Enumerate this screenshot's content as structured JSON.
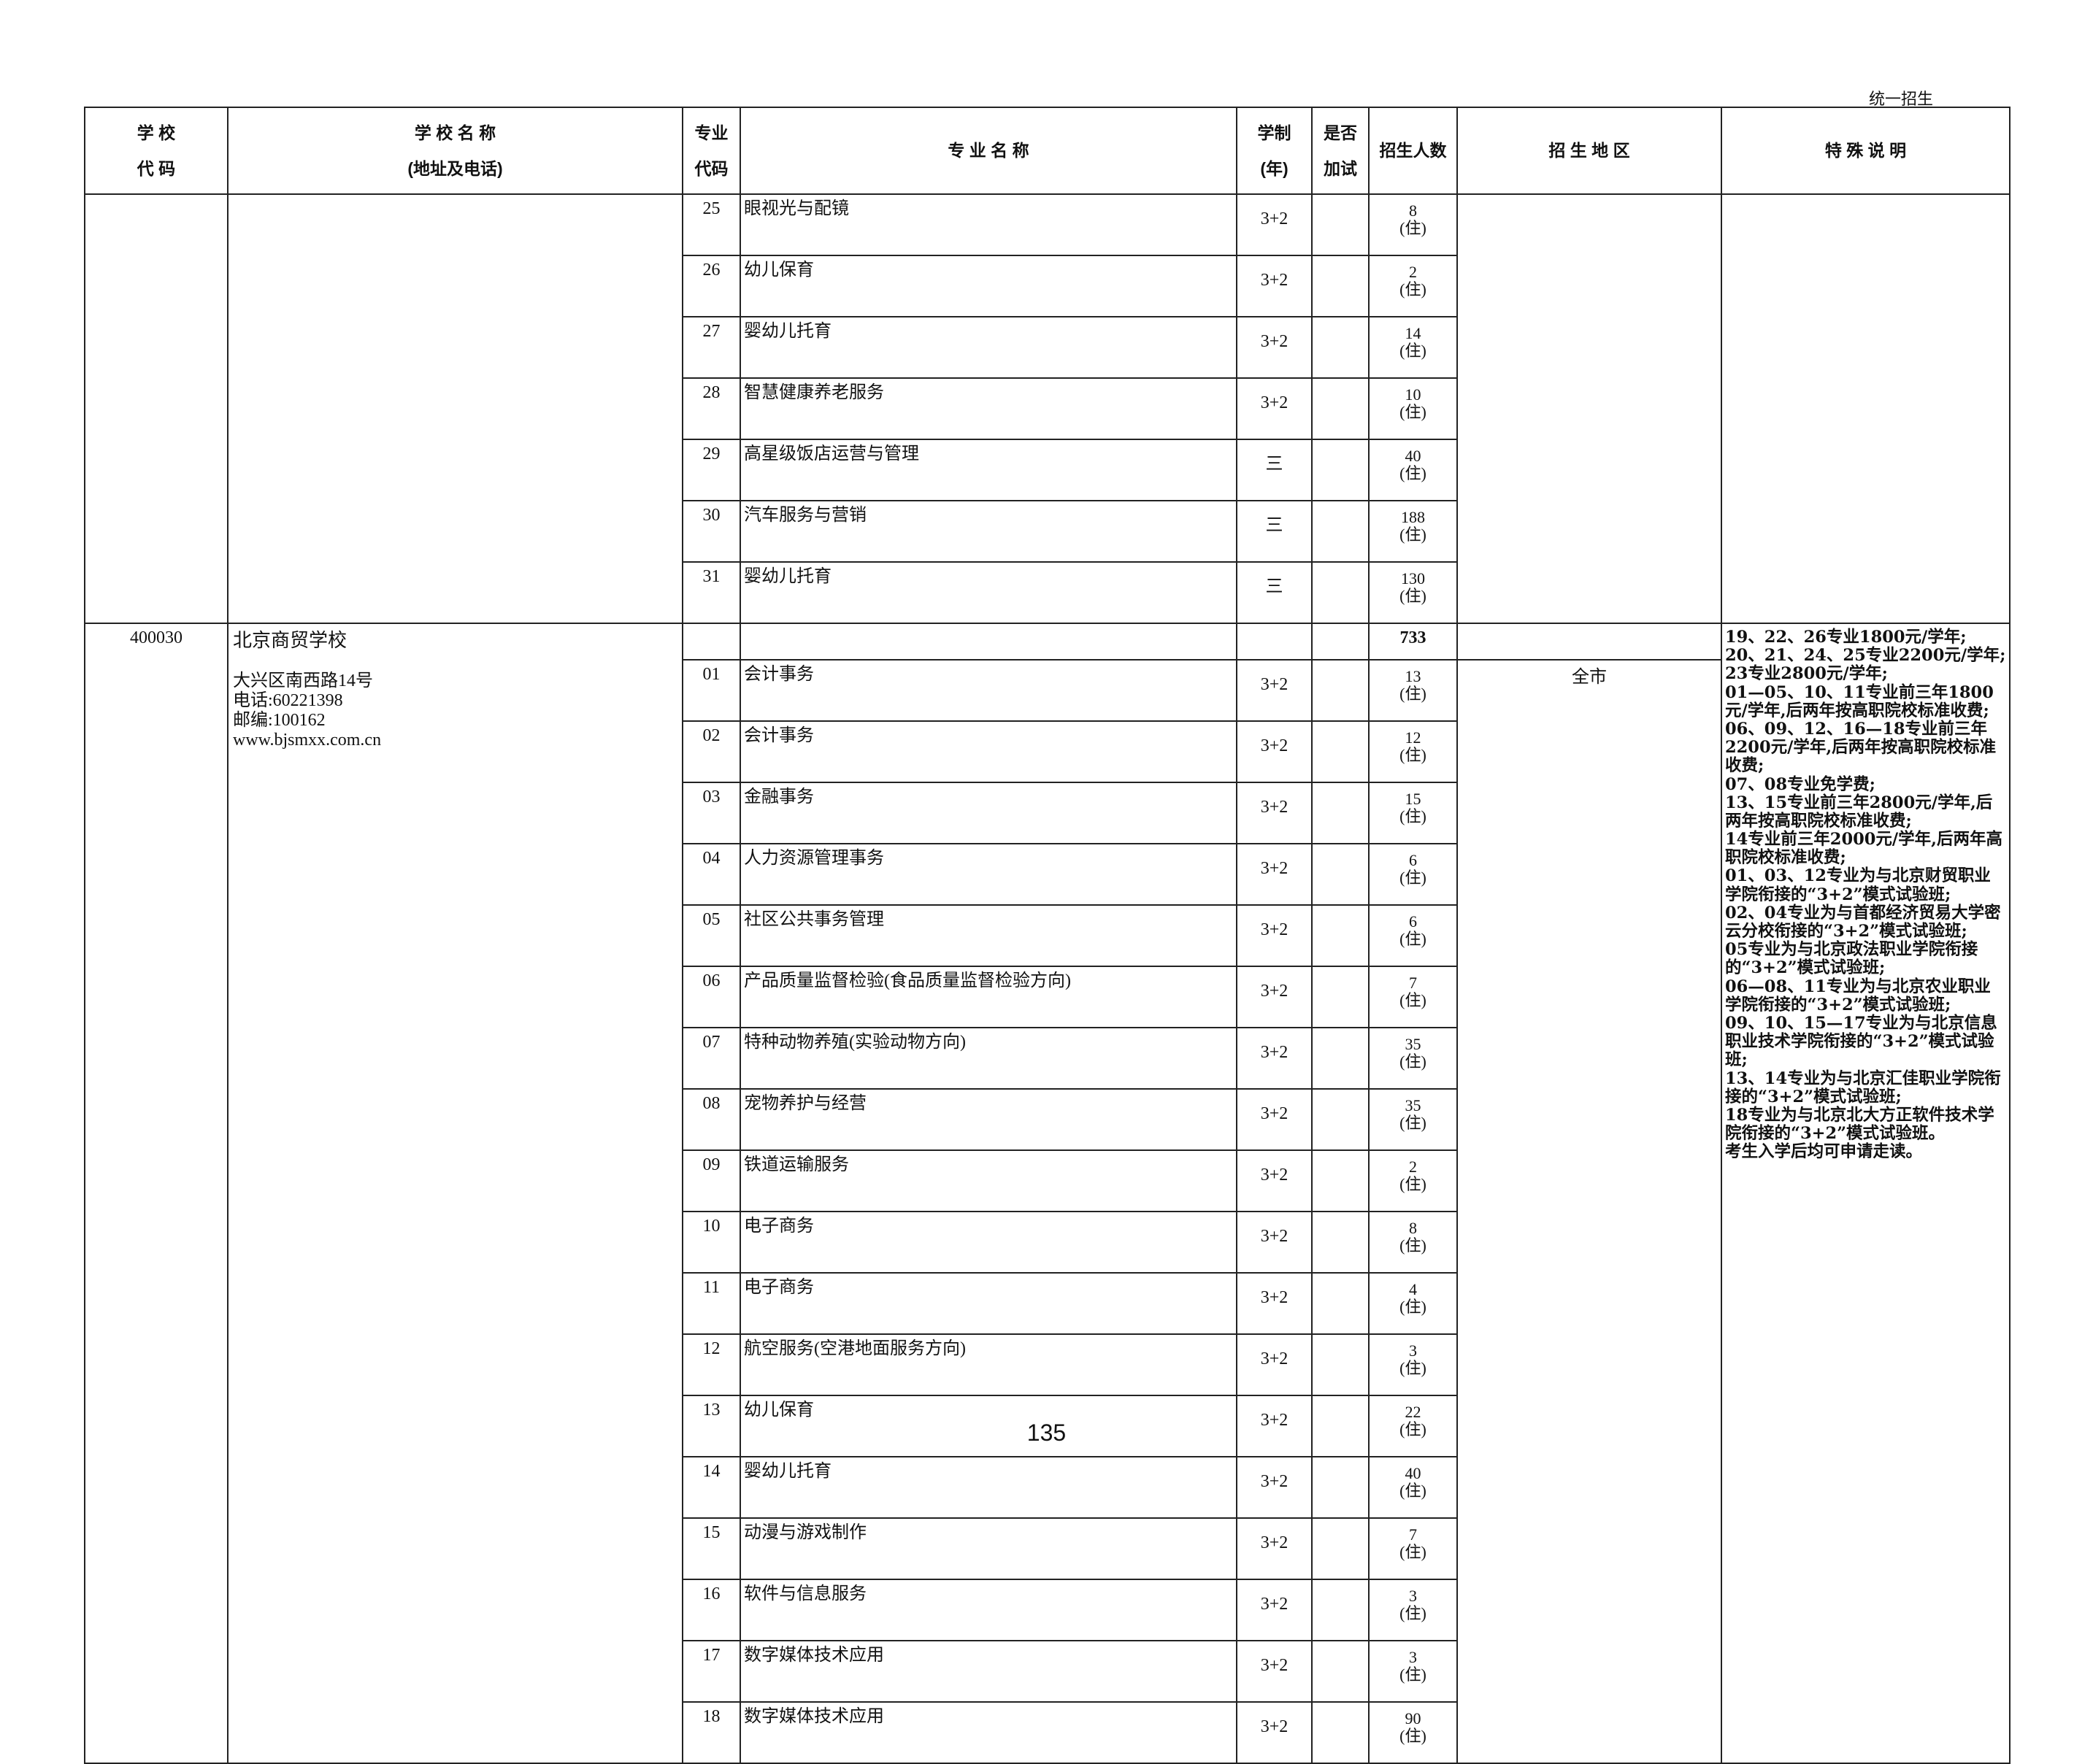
{
  "page_tag": "统一招生",
  "page_number": "135",
  "header": {
    "school_code": [
      "学 校",
      "代 码"
    ],
    "school_name": [
      "学 校 名 称",
      "(地址及电话)"
    ],
    "major_code": [
      "专业",
      "代码"
    ],
    "major_name": "专 业 名 称",
    "duration": [
      "学制",
      "(年)"
    ],
    "extra_test": [
      "是否",
      "加试"
    ],
    "quota": "招生人数",
    "region": "招 生 地 区",
    "notes": "特 殊 说 明"
  },
  "groups": [
    {
      "school": null,
      "rows": [
        {
          "code": "25",
          "name": "眼视光与配镜",
          "years": "3+2",
          "count": "8",
          "board": "(住)"
        },
        {
          "code": "26",
          "name": "幼儿保育",
          "years": "3+2",
          "count": "2",
          "board": "(住)"
        },
        {
          "code": "27",
          "name": "婴幼儿托育",
          "years": "3+2",
          "count": "14",
          "board": "(住)"
        },
        {
          "code": "28",
          "name": "智慧健康养老服务",
          "years": "3+2",
          "count": "10",
          "board": "(住)"
        },
        {
          "code": "29",
          "name": "高星级饭店运营与管理",
          "years": "三",
          "count": "40",
          "board": "(住)"
        },
        {
          "code": "30",
          "name": "汽车服务与营销",
          "years": "三",
          "count": "188",
          "board": "(住)"
        },
        {
          "code": "31",
          "name": "婴幼儿托育",
          "years": "三",
          "count": "130",
          "board": "(住)"
        }
      ]
    },
    {
      "school": {
        "code": "400030",
        "name": "北京商贸学校",
        "address": "大兴区南西路14号",
        "phone": "电话:60221398",
        "postcode": "邮编:100162",
        "website": "www.bjsmxx.com.cn",
        "total": "733",
        "region": "全市",
        "notes": [
          "19、22、26专业1800元/学年;",
          "20、21、24、25专业2200元/学年;",
          "23专业2800元/学年;",
          "01—05、10、11专业前三年1800元/学年,后两年按高职院校标准收费;",
          "06、09、12、16—18专业前三年2200元/学年,后两年按高职院校标准收费;",
          "07、08专业免学费;",
          "13、15专业前三年2800元/学年,后两年按高职院校标准收费;",
          "14专业前三年2000元/学年,后两年高职院校标准收费;",
          "01、03、12专业为与北京财贸职业学院衔接的“3+2”模式试验班;",
          "02、04专业为与首都经济贸易大学密云分校衔接的“3+2”模式试验班;",
          "05专业为与北京政法职业学院衔接的“3+2”模式试验班;",
          "06—08、11专业为与北京农业职业学院衔接的“3+2”模式试验班;",
          "09、10、15—17专业为与北京信息职业技术学院衔接的“3+2”模式试验班;",
          "13、14专业为与北京汇佳职业学院衔接的“3+2”模式试验班;",
          "18专业为与北京北大方正软件技术学院衔接的“3+2”模式试验班。",
          "考生入学后均可申请走读。"
        ]
      },
      "rows": [
        {
          "code": "01",
          "name": "会计事务",
          "years": "3+2",
          "count": "13",
          "board": "(住)"
        },
        {
          "code": "02",
          "name": "会计事务",
          "years": "3+2",
          "count": "12",
          "board": "(住)"
        },
        {
          "code": "03",
          "name": "金融事务",
          "years": "3+2",
          "count": "15",
          "board": "(住)"
        },
        {
          "code": "04",
          "name": "人力资源管理事务",
          "years": "3+2",
          "count": "6",
          "board": "(住)"
        },
        {
          "code": "05",
          "name": "社区公共事务管理",
          "years": "3+2",
          "count": "6",
          "board": "(住)"
        },
        {
          "code": "06",
          "name": "产品质量监督检验(食品质量监督检验方向)",
          "years": "3+2",
          "count": "7",
          "board": "(住)"
        },
        {
          "code": "07",
          "name": "特种动物养殖(实验动物方向)",
          "years": "3+2",
          "count": "35",
          "board": "(住)"
        },
        {
          "code": "08",
          "name": "宠物养护与经营",
          "years": "3+2",
          "count": "35",
          "board": "(住)"
        },
        {
          "code": "09",
          "name": "铁道运输服务",
          "years": "3+2",
          "count": "2",
          "board": "(住)"
        },
        {
          "code": "10",
          "name": "电子商务",
          "years": "3+2",
          "count": "8",
          "board": "(住)"
        },
        {
          "code": "11",
          "name": "电子商务",
          "years": "3+2",
          "count": "4",
          "board": "(住)"
        },
        {
          "code": "12",
          "name": "航空服务(空港地面服务方向)",
          "years": "3+2",
          "count": "3",
          "board": "(住)"
        },
        {
          "code": "13",
          "name": "幼儿保育",
          "years": "3+2",
          "count": "22",
          "board": "(住)"
        },
        {
          "code": "14",
          "name": "婴幼儿托育",
          "years": "3+2",
          "count": "40",
          "board": "(住)"
        },
        {
          "code": "15",
          "name": "动漫与游戏制作",
          "years": "3+2",
          "count": "7",
          "board": "(住)"
        },
        {
          "code": "16",
          "name": "软件与信息服务",
          "years": "3+2",
          "count": "3",
          "board": "(住)"
        },
        {
          "code": "17",
          "name": "数字媒体技术应用",
          "years": "3+2",
          "count": "3",
          "board": "(住)"
        },
        {
          "code": "18",
          "name": "数字媒体技术应用",
          "years": "3+2",
          "count": "90",
          "board": "(住)"
        }
      ]
    }
  ]
}
